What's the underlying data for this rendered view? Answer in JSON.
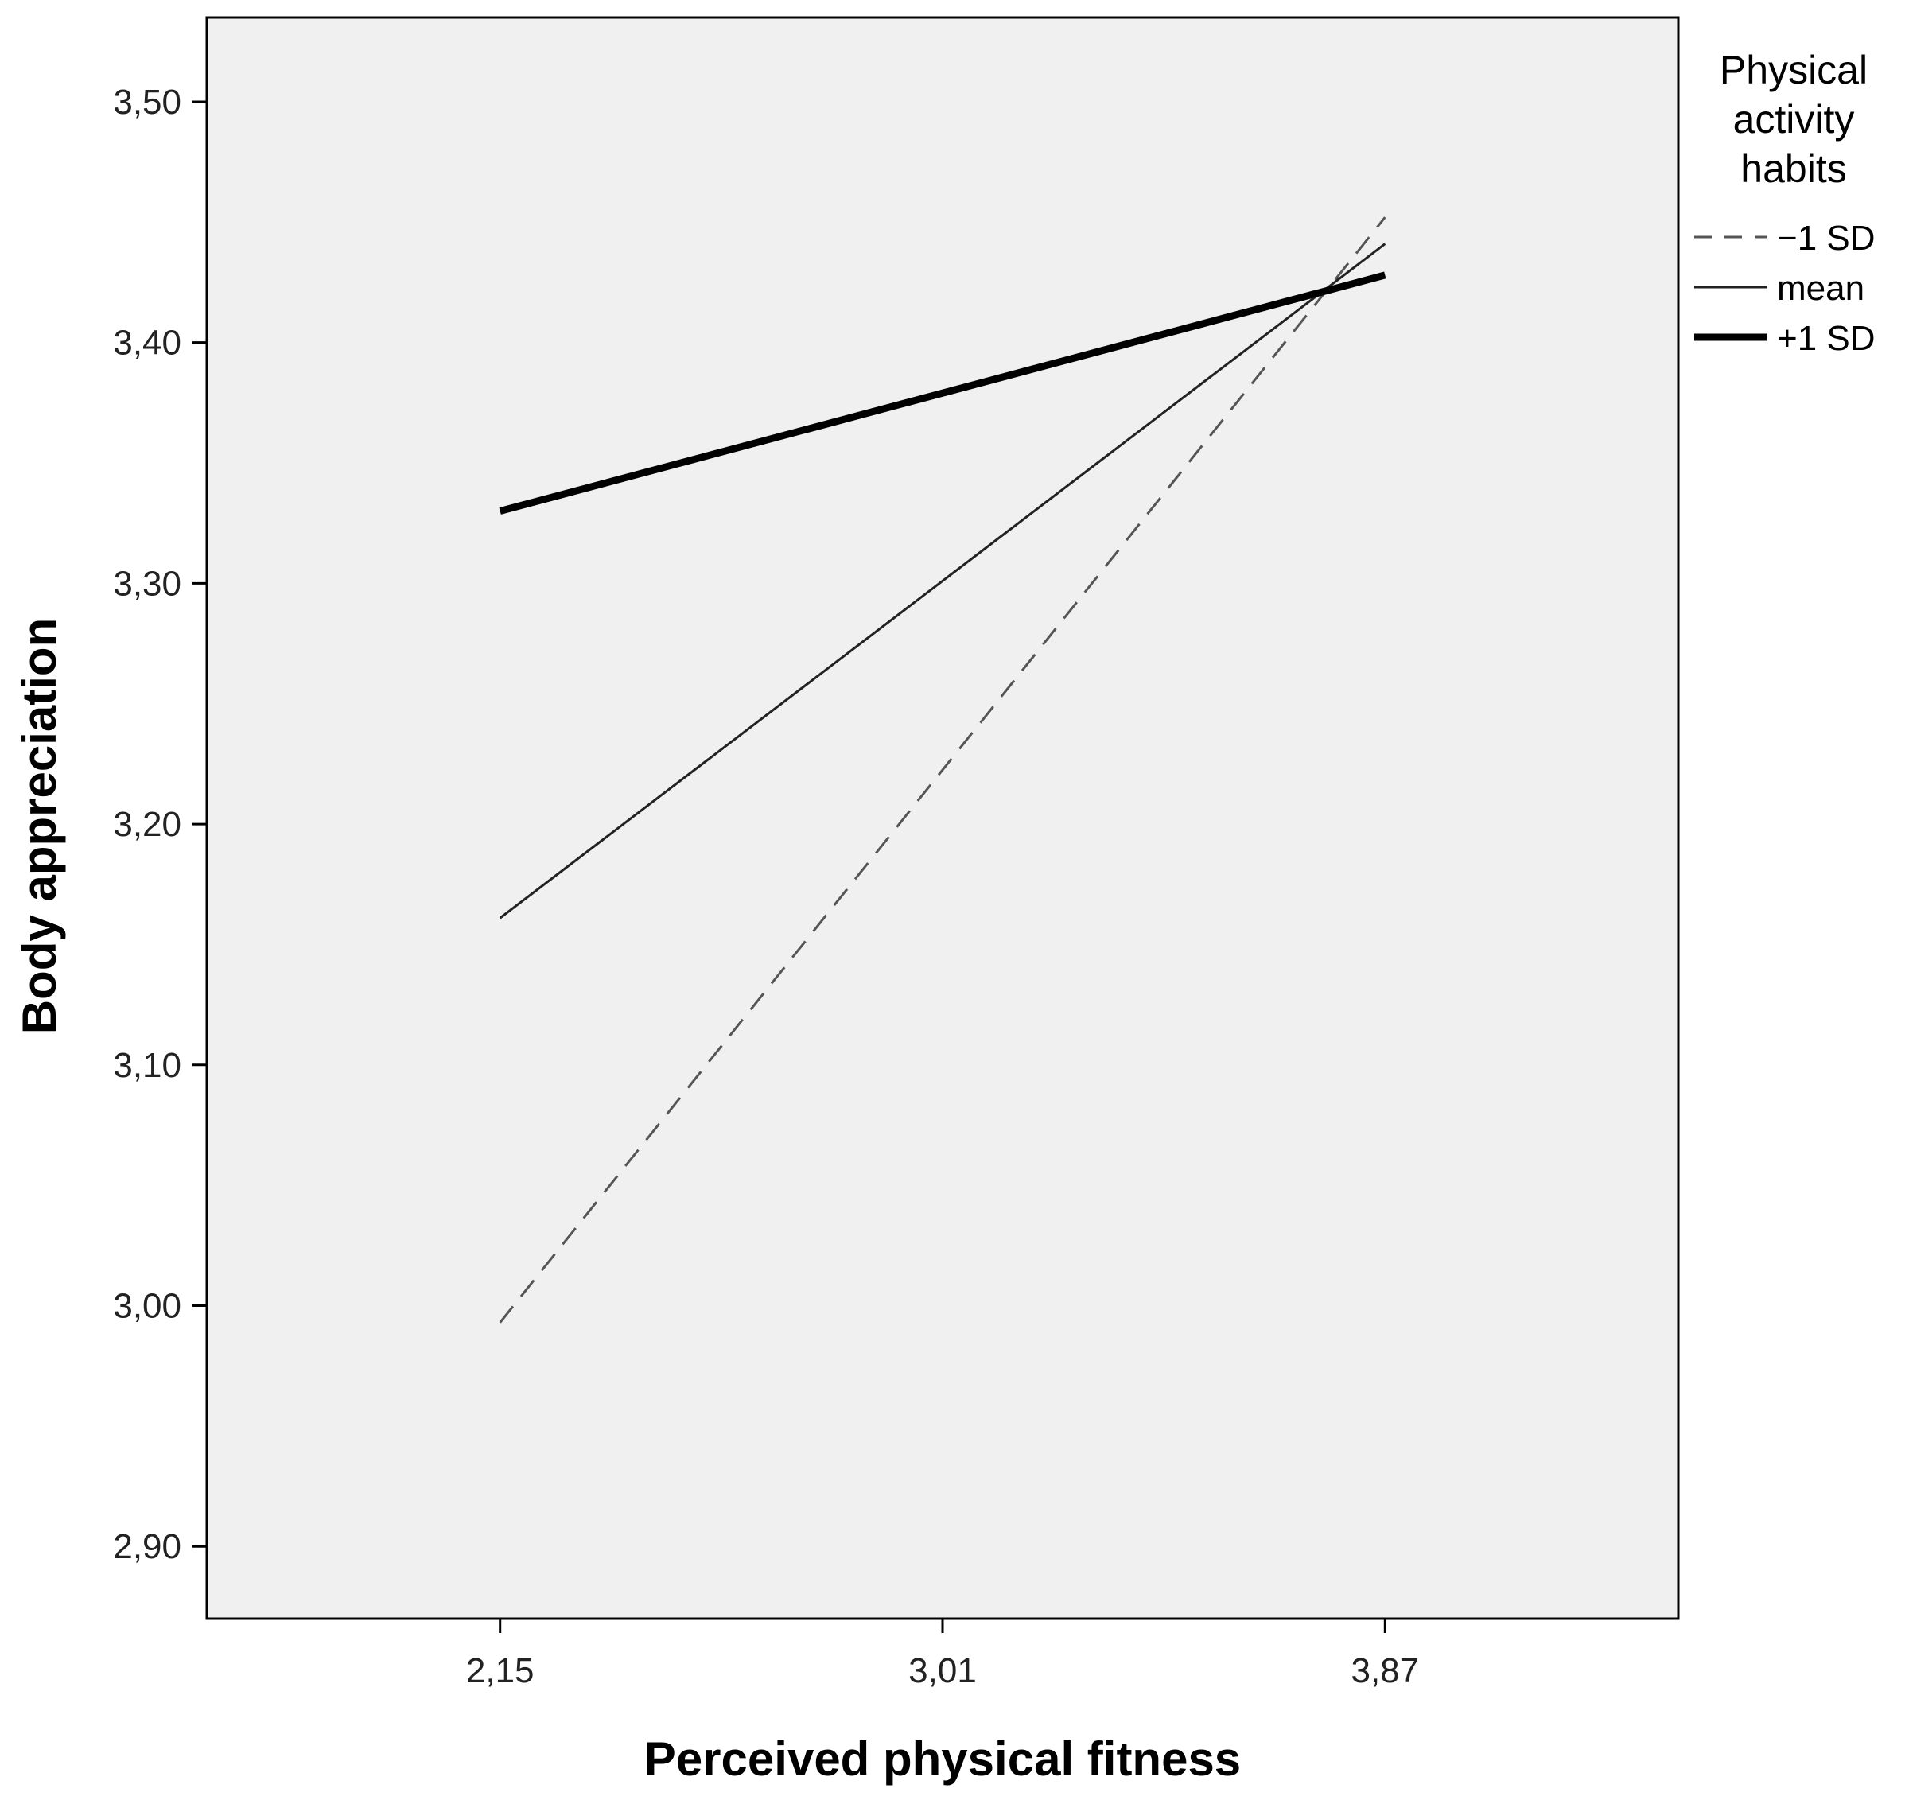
{
  "chart_data": {
    "type": "line",
    "xlabel": "Perceived physical fitness",
    "ylabel": "Body appreciation",
    "x": [
      2.15,
      3.87
    ],
    "x_ticks": [
      "2,15",
      "3,01",
      "3,87"
    ],
    "x_tick_values": [
      2.15,
      3.01,
      3.87
    ],
    "xlim": [
      1.58,
      4.44
    ],
    "ylim": [
      2.87,
      3.535
    ],
    "y_ticks": [
      "2,90",
      "3,00",
      "3,10",
      "3,20",
      "3,30",
      "3,40",
      "3,50"
    ],
    "y_tick_values": [
      2.9,
      3.0,
      3.1,
      3.2,
      3.3,
      3.4,
      3.5
    ],
    "grid": false,
    "legend": {
      "title_lines": [
        "Physical",
        "activity",
        "habits"
      ],
      "placement": "right-top"
    },
    "series": [
      {
        "name": "−1 SD",
        "values": [
          2.993,
          3.452
        ],
        "style": "dashed",
        "color": "#555555"
      },
      {
        "name": "mean",
        "values": [
          3.161,
          3.441
        ],
        "style": "solid-thin",
        "color": "#222222"
      },
      {
        "name": "+1 SD",
        "values": [
          3.33,
          3.428
        ],
        "style": "solid-thick",
        "color": "#000000"
      }
    ],
    "colors": {
      "plot_background": "#f0f0f0",
      "frame": "#000000"
    }
  }
}
